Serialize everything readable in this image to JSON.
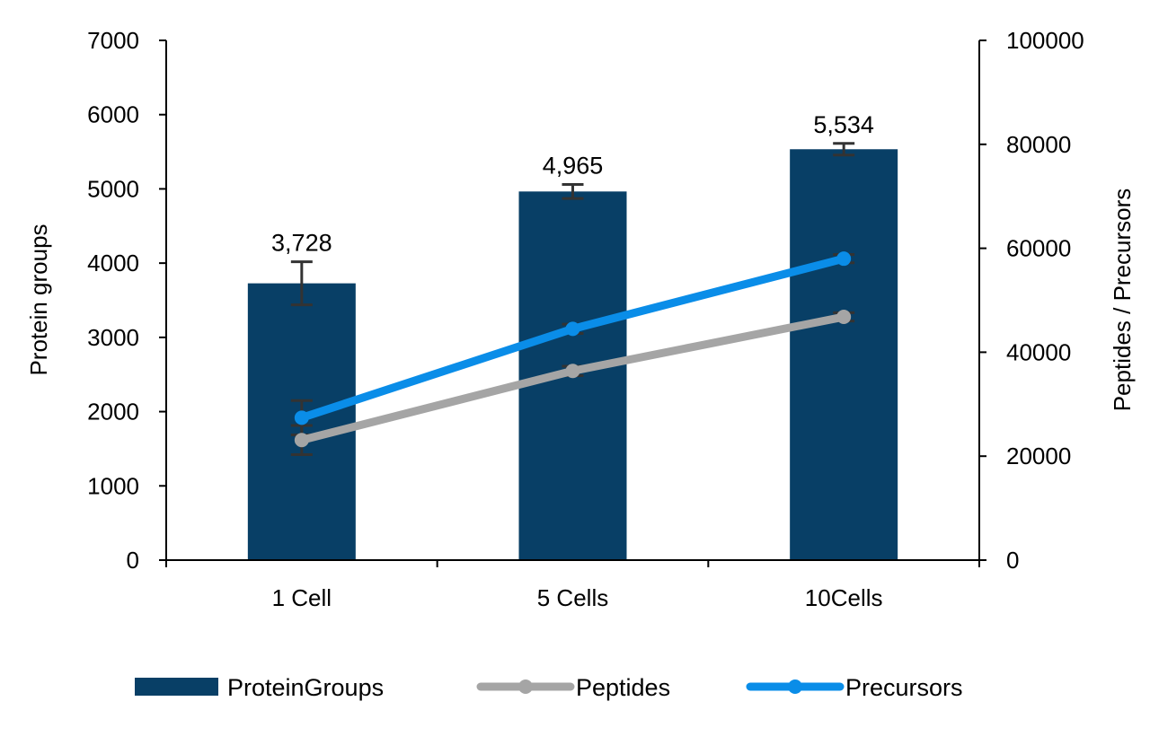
{
  "chart_data": {
    "type": "bar+line",
    "categories": [
      "1 Cell",
      "5 Cells",
      "10Cells"
    ],
    "ylabel": "Protein groups",
    "y2label": "Peptides / Precursors",
    "ylim": [
      0,
      7000
    ],
    "yticks": [
      0,
      1000,
      2000,
      3000,
      4000,
      5000,
      6000,
      7000
    ],
    "y2lim": [
      0,
      100000
    ],
    "y2ticks": [
      0,
      20000,
      40000,
      60000,
      80000,
      100000
    ],
    "grid": false,
    "legend_position": "bottom",
    "series": [
      {
        "name": "ProteinGroups",
        "type": "bar",
        "axis": "left",
        "color": "#083F66",
        "values": [
          3728,
          4965,
          5534
        ],
        "errors": [
          290,
          95,
          78
        ],
        "data_labels": [
          "3,728",
          "4,965",
          "5,534"
        ]
      },
      {
        "name": "Peptides",
        "type": "line",
        "axis": "right",
        "color": "#A5A5A5",
        "values": [
          23100,
          36400,
          46800
        ],
        "errors": [
          2800,
          900,
          800
        ]
      },
      {
        "name": "Precursors",
        "type": "line",
        "axis": "right",
        "color": "#0A8DE8",
        "values": [
          27400,
          44500,
          58000
        ],
        "errors": [
          3300,
          900,
          800
        ]
      }
    ]
  }
}
